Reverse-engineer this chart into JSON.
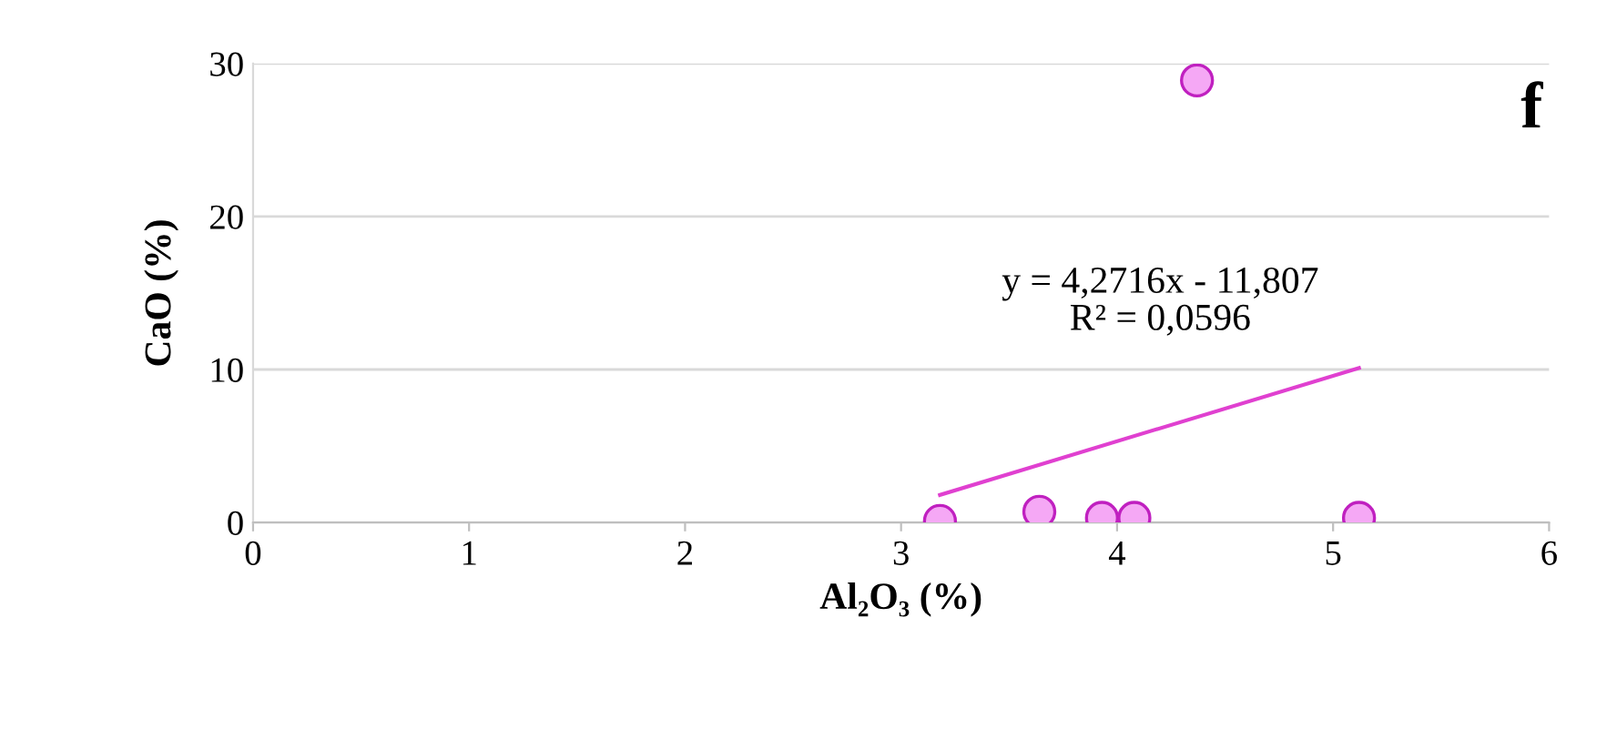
{
  "chart_data": {
    "type": "scatter",
    "xlabel": "Al₂O₃ (%)",
    "ylabel": "CaO (%)",
    "series": [
      {
        "color": "#f5a8f5",
        "x": [
          3.18,
          3.64,
          3.93,
          4.08,
          4.37,
          5.12
        ],
        "values": [
          0.1,
          0.7,
          0.3,
          0.3,
          28.9,
          0.3
        ],
        "marker": "circle"
      },
      {
        "type": "line",
        "color": "#e040d0",
        "x": [
          3.18,
          5.12
        ],
        "values": [
          1.8,
          10.1
        ],
        "marker": "none"
      }
    ],
    "annotations": [
      "y = 4,2716x - 11,807\nR² = 0,0596",
      "f"
    ],
    "xlim": [
      0,
      6
    ],
    "xticks": [
      0,
      1,
      2,
      3,
      4,
      5,
      6
    ],
    "ylim": [
      0,
      30
    ],
    "yticks": [
      0,
      10,
      20,
      30
    ],
    "grid": "y",
    "legend": false
  }
}
